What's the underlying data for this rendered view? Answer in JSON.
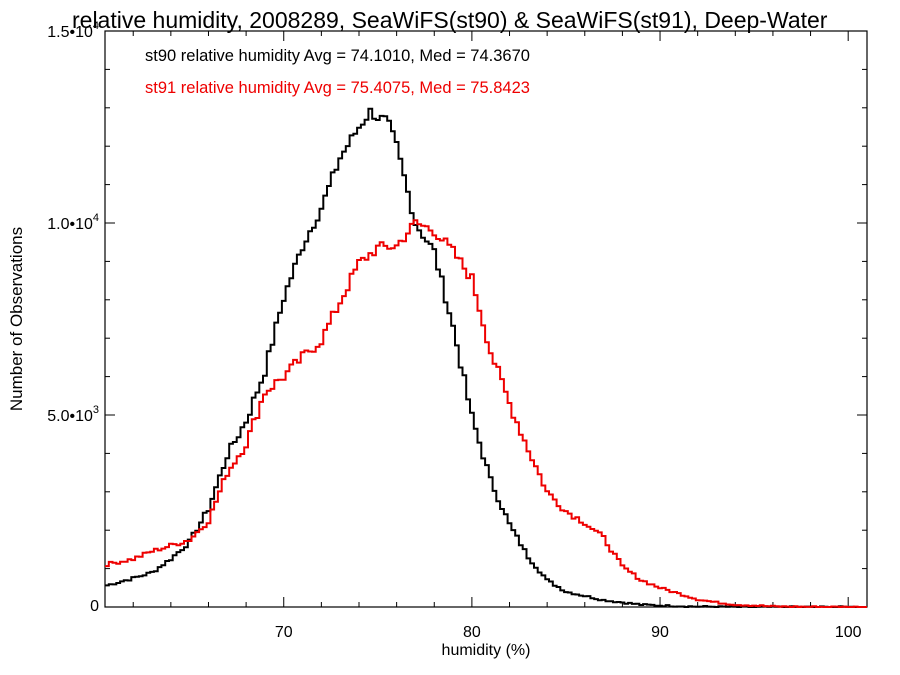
{
  "chart_data": {
    "type": "line",
    "title": "relative humidity, 2008289, SeaWiFS(st90) & SeaWiFS(st91), Deep-Water",
    "xlabel": "humidity (%)",
    "ylabel": "Number of Observations",
    "xlim": [
      60.5,
      101
    ],
    "ylim": [
      0,
      15000
    ],
    "x_ticks": [
      {
        "value": 70,
        "label": "70"
      },
      {
        "value": 80,
        "label": "80"
      },
      {
        "value": 90,
        "label": "90"
      },
      {
        "value": 100,
        "label": "100"
      }
    ],
    "y_ticks": [
      {
        "value": 0,
        "mant": "0",
        "exp": ""
      },
      {
        "value": 5000,
        "mant": "5.0•10",
        "exp": "3"
      },
      {
        "value": 10000,
        "mant": "1.0•10",
        "exp": "4"
      },
      {
        "value": 15000,
        "mant": "1.5•10",
        "exp": "4"
      }
    ],
    "grid": false,
    "annotations": [
      {
        "text": "st90 relative humidity Avg = 74.1010, Med = 74.3670",
        "color": "#000000"
      },
      {
        "text": "st91 relative humidity Avg = 75.4075, Med = 75.8423",
        "color": "#ee0000"
      }
    ],
    "series": [
      {
        "color": "#000000",
        "style": "step",
        "points": [
          [
            60.5,
            550
          ],
          [
            62,
            750
          ],
          [
            63,
            900
          ],
          [
            64,
            1250
          ],
          [
            65,
            1700
          ],
          [
            66,
            2550
          ],
          [
            67,
            3950
          ],
          [
            68,
            4850
          ],
          [
            69,
            6150
          ],
          [
            70,
            8050
          ],
          [
            71,
            9400
          ],
          [
            72,
            10400
          ],
          [
            73,
            11700
          ],
          [
            74,
            12500
          ],
          [
            74.6,
            12900
          ],
          [
            75,
            12750
          ],
          [
            75.5,
            12650
          ],
          [
            76,
            12000
          ],
          [
            77,
            10000
          ],
          [
            78,
            9250
          ],
          [
            79,
            7300
          ],
          [
            80,
            4950
          ],
          [
            81,
            3300
          ],
          [
            82,
            2150
          ],
          [
            83,
            1300
          ],
          [
            84,
            700
          ],
          [
            85,
            400
          ],
          [
            87,
            180
          ],
          [
            89,
            60
          ],
          [
            90,
            40
          ],
          [
            92,
            10
          ],
          [
            95,
            0
          ],
          [
            101,
            0
          ]
        ]
      },
      {
        "color": "#ee0000",
        "style": "step",
        "points": [
          [
            60.5,
            1100
          ],
          [
            62,
            1250
          ],
          [
            63,
            1450
          ],
          [
            64,
            1600
          ],
          [
            65,
            1750
          ],
          [
            66,
            2250
          ],
          [
            67,
            3500
          ],
          [
            68,
            4250
          ],
          [
            69,
            5600
          ],
          [
            70,
            6000
          ],
          [
            71,
            6500
          ],
          [
            72,
            6950
          ],
          [
            73,
            7950
          ],
          [
            74,
            8950
          ],
          [
            75,
            9350
          ],
          [
            76,
            9400
          ],
          [
            77,
            10000
          ],
          [
            78,
            9800
          ],
          [
            79,
            9250
          ],
          [
            80,
            8550
          ],
          [
            81,
            6650
          ],
          [
            82,
            5300
          ],
          [
            83,
            4100
          ],
          [
            84,
            3000
          ],
          [
            85,
            2500
          ],
          [
            86,
            2200
          ],
          [
            87,
            1800
          ],
          [
            88,
            1050
          ],
          [
            89,
            700
          ],
          [
            90,
            500
          ],
          [
            91,
            350
          ],
          [
            92,
            200
          ],
          [
            93,
            120
          ],
          [
            94,
            60
          ],
          [
            95,
            40
          ],
          [
            96,
            15
          ],
          [
            98,
            5
          ],
          [
            101,
            0
          ]
        ]
      }
    ]
  }
}
